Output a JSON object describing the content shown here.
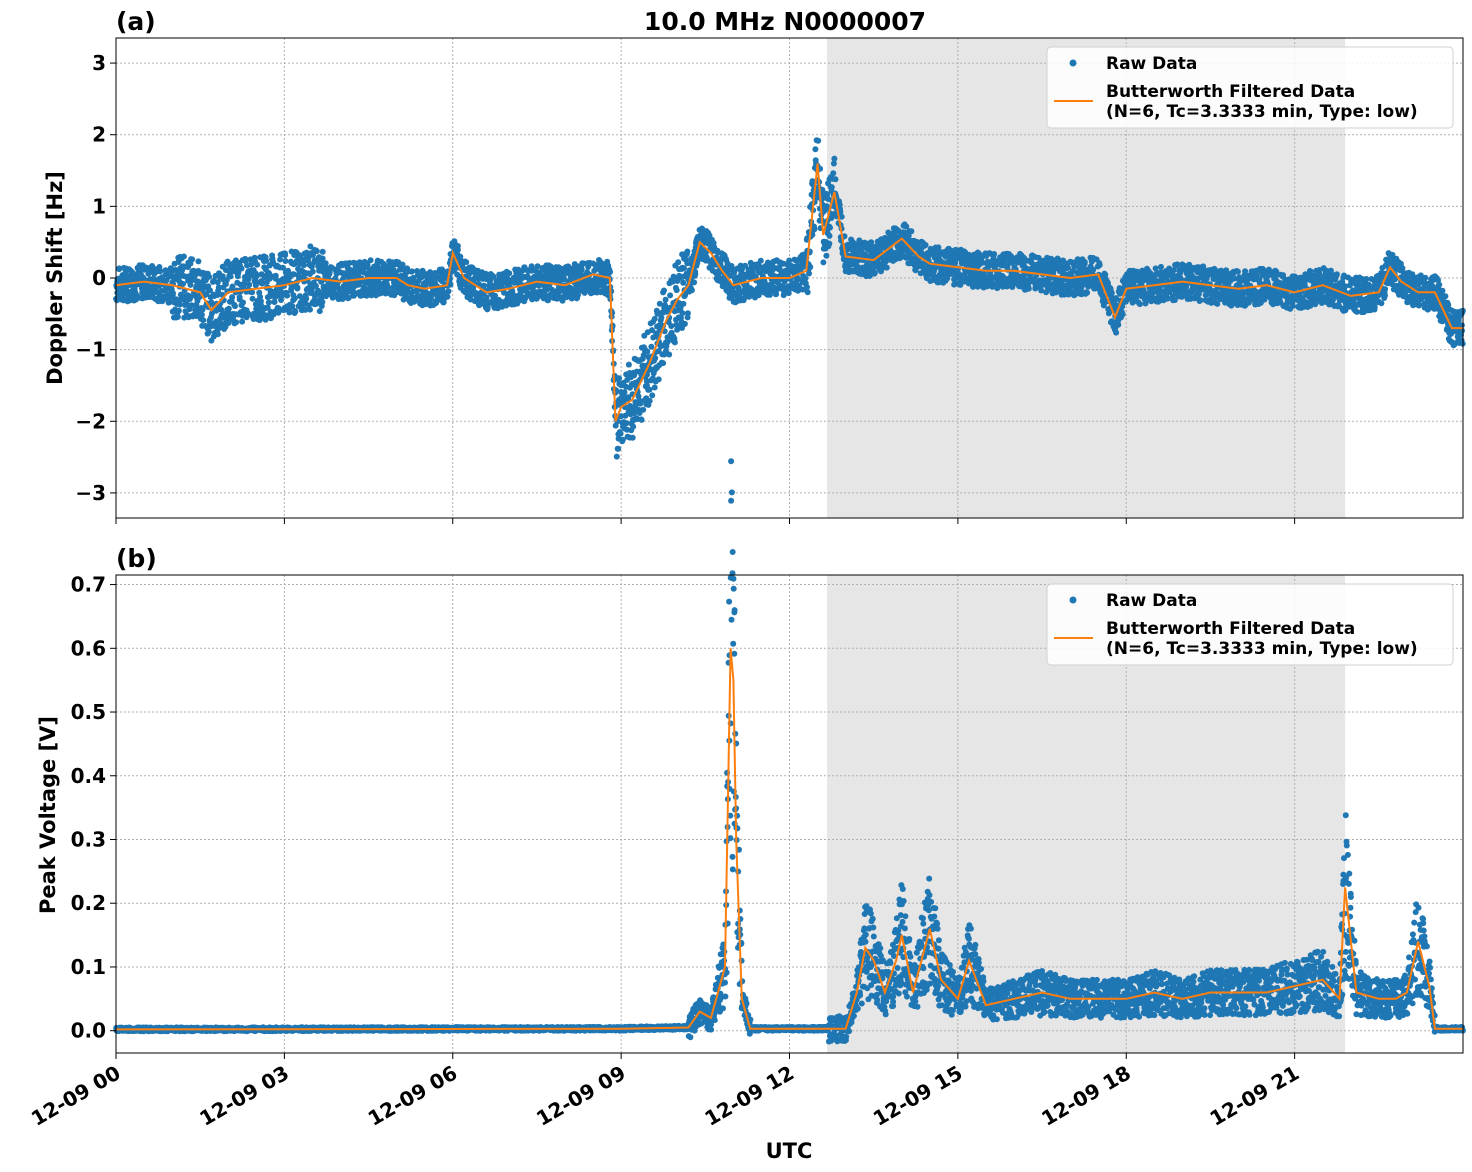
{
  "title": "10.0 MHz N0000007",
  "xlabel": "UTC",
  "x_ticks": [
    "12-09 00",
    "12-09 03",
    "12-09 06",
    "12-09 09",
    "12-09 12",
    "12-09 15",
    "12-09 18",
    "12-09 21"
  ],
  "shaded_region": {
    "start_hour": 12.67,
    "end_hour": 21.9,
    "color": "#e6e6e6"
  },
  "colors": {
    "raw": "#1f77b4",
    "filtered": "#ff7f0e"
  },
  "legend": {
    "raw_label": "Raw Data",
    "filtered_line1": "Butterworth Filtered Data",
    "filtered_line2": "(N=6, Tc=3.3333 min, Type: low)"
  },
  "chart_data": [
    {
      "panel_label": "(a)",
      "type": "scatter",
      "ylabel": "Doppler Shift [Hz]",
      "ylim": [
        -3.35,
        3.35
      ],
      "y_ticks": [
        "3",
        "2",
        "1",
        "0",
        "−1",
        "−2",
        "−3"
      ],
      "x_hours_range": [
        0,
        24
      ],
      "grid": true,
      "legend_position": "upper right",
      "series": [
        {
          "name": "Butterworth Filtered Data (N=6, Tc=3.3333 min, Type: low)",
          "x": [
            0,
            0.5,
            1,
            1.5,
            1.7,
            2,
            2.5,
            3,
            3.5,
            4,
            4.5,
            5,
            5.2,
            5.5,
            5.9,
            6,
            6.2,
            6.6,
            7,
            7.5,
            8,
            8.5,
            8.8,
            8.9,
            9,
            9.2,
            9.5,
            9.8,
            10,
            10.2,
            10.4,
            10.6,
            10.8,
            11,
            11.5,
            12,
            12.3,
            12.5,
            12.6,
            12.8,
            13,
            13.5,
            14,
            14.3,
            14.5,
            15,
            15.5,
            16,
            16.5,
            17,
            17.5,
            17.8,
            18,
            18.5,
            19,
            19.5,
            20,
            20.5,
            21,
            21.5,
            22,
            22.5,
            22.7,
            22.9,
            23.2,
            23.5,
            23.8,
            24
          ],
          "values": [
            -0.1,
            -0.05,
            -0.1,
            -0.2,
            -0.45,
            -0.2,
            -0.15,
            -0.1,
            0.0,
            -0.05,
            0.0,
            0.0,
            -0.1,
            -0.15,
            -0.1,
            0.35,
            0.0,
            -0.2,
            -0.15,
            -0.05,
            -0.1,
            0.05,
            0.0,
            -2.0,
            -1.8,
            -1.7,
            -1.2,
            -0.6,
            -0.3,
            -0.1,
            0.5,
            0.35,
            0.1,
            -0.1,
            0.0,
            0.0,
            0.1,
            1.6,
            0.6,
            1.2,
            0.3,
            0.25,
            0.55,
            0.3,
            0.2,
            0.15,
            0.1,
            0.1,
            0.05,
            0.0,
            0.05,
            -0.55,
            -0.15,
            -0.1,
            -0.05,
            -0.1,
            -0.15,
            -0.1,
            -0.2,
            -0.1,
            -0.25,
            -0.2,
            0.15,
            -0.05,
            -0.2,
            -0.2,
            -0.7,
            -0.7
          ]
        }
      ]
    },
    {
      "panel_label": "(b)",
      "type": "scatter",
      "ylabel": "Peak Voltage [V]",
      "ylim": [
        -0.035,
        0.715
      ],
      "y_ticks": [
        "0.0",
        "0.1",
        "0.2",
        "0.3",
        "0.4",
        "0.5",
        "0.6",
        "0.7"
      ],
      "x_hours_range": [
        0,
        24
      ],
      "grid": true,
      "legend_position": "upper right",
      "series": [
        {
          "name": "Butterworth Filtered Data (N=6, Tc=3.3333 min, Type: low)",
          "x": [
            0,
            9,
            10.2,
            10.4,
            10.6,
            10.85,
            10.95,
            11.0,
            11.05,
            11.15,
            11.3,
            12.0,
            12.6,
            12.8,
            13.0,
            13.2,
            13.35,
            13.5,
            13.7,
            13.9,
            14.0,
            14.2,
            14.5,
            14.7,
            15.0,
            15.2,
            15.5,
            16,
            16.5,
            17,
            17.5,
            18,
            18.5,
            19,
            19.5,
            20,
            20.5,
            21,
            21.5,
            21.8,
            21.9,
            22.1,
            22.5,
            22.8,
            23.0,
            23.2,
            23.4,
            23.5,
            24
          ],
          "values": [
            0.002,
            0.003,
            0.005,
            0.03,
            0.02,
            0.1,
            0.6,
            0.55,
            0.3,
            0.05,
            0.003,
            0.003,
            0.003,
            0.003,
            0.003,
            0.06,
            0.13,
            0.11,
            0.06,
            0.11,
            0.15,
            0.06,
            0.16,
            0.08,
            0.05,
            0.11,
            0.04,
            0.05,
            0.06,
            0.05,
            0.05,
            0.05,
            0.06,
            0.05,
            0.06,
            0.06,
            0.06,
            0.07,
            0.08,
            0.05,
            0.225,
            0.06,
            0.05,
            0.05,
            0.06,
            0.14,
            0.07,
            0.003,
            0.003
          ]
        }
      ]
    }
  ]
}
